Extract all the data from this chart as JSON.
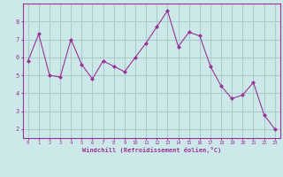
{
  "x": [
    0,
    1,
    2,
    3,
    4,
    5,
    6,
    7,
    8,
    9,
    10,
    11,
    12,
    13,
    14,
    15,
    16,
    17,
    18,
    19,
    20,
    21,
    22,
    23
  ],
  "y": [
    5.8,
    7.3,
    5.0,
    4.9,
    7.0,
    5.6,
    4.8,
    5.8,
    5.5,
    5.2,
    6.0,
    6.8,
    7.7,
    8.6,
    6.6,
    7.4,
    7.2,
    5.5,
    4.4,
    3.7,
    3.9,
    4.6,
    2.8,
    2.0
  ],
  "line_color": "#993399",
  "marker": "D",
  "marker_size": 2,
  "bg_color": "#cce8e8",
  "grid_color": "#aacccc",
  "xlabel": "Windchill (Refroidissement éolien,°C)",
  "xlabel_color": "#993399",
  "tick_color": "#993399",
  "xlim": [
    -0.5,
    23.5
  ],
  "ylim": [
    1.5,
    9.0
  ],
  "yticks": [
    2,
    3,
    4,
    5,
    6,
    7,
    8
  ],
  "xticks": [
    0,
    1,
    2,
    3,
    4,
    5,
    6,
    7,
    8,
    9,
    10,
    11,
    12,
    13,
    14,
    15,
    16,
    17,
    18,
    19,
    20,
    21,
    22,
    23
  ]
}
